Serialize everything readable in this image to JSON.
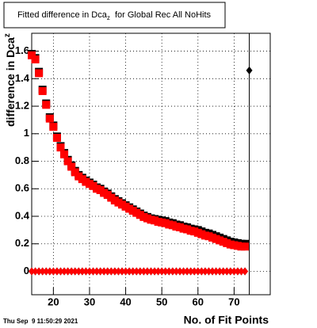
{
  "chart_data": {
    "type": "scatter",
    "title": [
      "Fitted difference in Dca",
      "z",
      "  for Global Rec All NoHits"
    ],
    "y_label": [
      "difference in Dca",
      "z"
    ],
    "x_label": "No. of Fit Points",
    "timestamp": "Thu Sep  9 11:50:29 2021",
    "xlim": [
      14,
      80
    ],
    "ylim": [
      -0.17,
      1.73
    ],
    "xticks": [
      20,
      30,
      40,
      50,
      60,
      70
    ],
    "yticks": [
      0,
      0.2,
      0.4,
      0.6,
      0.8,
      1,
      1.2,
      1.4,
      1.6
    ],
    "grid": true,
    "x": [
      14,
      15,
      16,
      17,
      18,
      19,
      20,
      21,
      22,
      23,
      24,
      25,
      26,
      27,
      28,
      29,
      30,
      31,
      32,
      33,
      34,
      35,
      36,
      37,
      38,
      39,
      40,
      41,
      42,
      43,
      44,
      45,
      46,
      47,
      48,
      49,
      50,
      51,
      52,
      53,
      54,
      55,
      56,
      57,
      58,
      59,
      60,
      61,
      62,
      63,
      64,
      65,
      66,
      67,
      68,
      69,
      70,
      71,
      72,
      73
    ],
    "series": [
      {
        "color": "#000000",
        "marker": "square",
        "values": [
          1.58,
          1.55,
          1.45,
          1.32,
          1.22,
          1.12,
          1.06,
          0.98,
          0.91,
          0.86,
          0.81,
          0.77,
          0.73,
          0.7,
          0.68,
          0.66,
          0.645,
          0.63,
          0.61,
          0.6,
          0.58,
          0.565,
          0.545,
          0.525,
          0.51,
          0.495,
          0.48,
          0.465,
          0.45,
          0.435,
          0.42,
          0.405,
          0.395,
          0.385,
          0.38,
          0.375,
          0.37,
          0.365,
          0.355,
          0.35,
          0.34,
          0.335,
          0.325,
          0.32,
          0.31,
          0.305,
          0.3,
          0.29,
          0.28,
          0.275,
          0.265,
          0.255,
          0.245,
          0.235,
          0.225,
          0.215,
          0.21,
          0.205,
          0.2,
          0.2
        ]
      },
      {
        "color": "#ff0000",
        "marker": "square",
        "values": [
          1.57,
          1.54,
          1.44,
          1.31,
          1.21,
          1.11,
          1.05,
          0.97,
          0.9,
          0.85,
          0.8,
          0.76,
          0.72,
          0.69,
          0.67,
          0.65,
          0.635,
          0.62,
          0.6,
          0.59,
          0.57,
          0.555,
          0.535,
          0.515,
          0.5,
          0.485,
          0.47,
          0.455,
          0.44,
          0.425,
          0.41,
          0.395,
          0.385,
          0.375,
          0.37,
          0.36,
          0.355,
          0.35,
          0.34,
          0.335,
          0.325,
          0.32,
          0.31,
          0.305,
          0.295,
          0.29,
          0.28,
          0.27,
          0.26,
          0.255,
          0.245,
          0.235,
          0.225,
          0.215,
          0.205,
          0.195,
          0.19,
          0.185,
          0.18,
          0.18
        ]
      },
      {
        "color": "#000000",
        "marker": "diamond",
        "values": [
          0,
          0,
          0,
          0,
          0,
          0,
          0,
          0,
          0,
          0,
          0,
          0,
          0,
          0,
          0,
          0,
          0,
          0,
          0,
          0,
          0,
          0,
          0,
          0,
          0,
          0,
          0,
          0,
          0,
          0,
          0,
          0,
          0,
          0,
          0,
          0,
          0,
          0,
          0,
          0,
          0,
          0,
          0,
          0,
          0,
          0,
          0,
          0,
          0,
          0,
          0,
          0,
          0,
          0,
          0,
          0,
          0,
          0,
          0,
          0
        ]
      },
      {
        "color": "#ff0000",
        "marker": "diamond",
        "values": [
          0,
          0,
          0,
          0,
          0,
          0,
          0,
          0,
          0,
          0,
          0,
          0,
          0,
          0,
          0,
          0,
          0,
          0,
          0,
          0,
          0,
          0,
          0,
          0,
          0,
          0,
          0,
          0,
          0,
          0,
          0,
          0,
          0,
          0,
          0,
          0,
          0,
          0,
          0,
          0,
          0,
          0,
          0,
          0,
          0,
          0,
          0,
          0,
          0,
          0,
          0,
          0,
          0,
          0,
          0,
          0,
          0,
          0,
          0,
          0
        ]
      },
      {
        "color": "#000000",
        "marker": "diamond",
        "vline": true,
        "x": [
          74.2
        ],
        "values": [
          1.46
        ]
      }
    ]
  }
}
